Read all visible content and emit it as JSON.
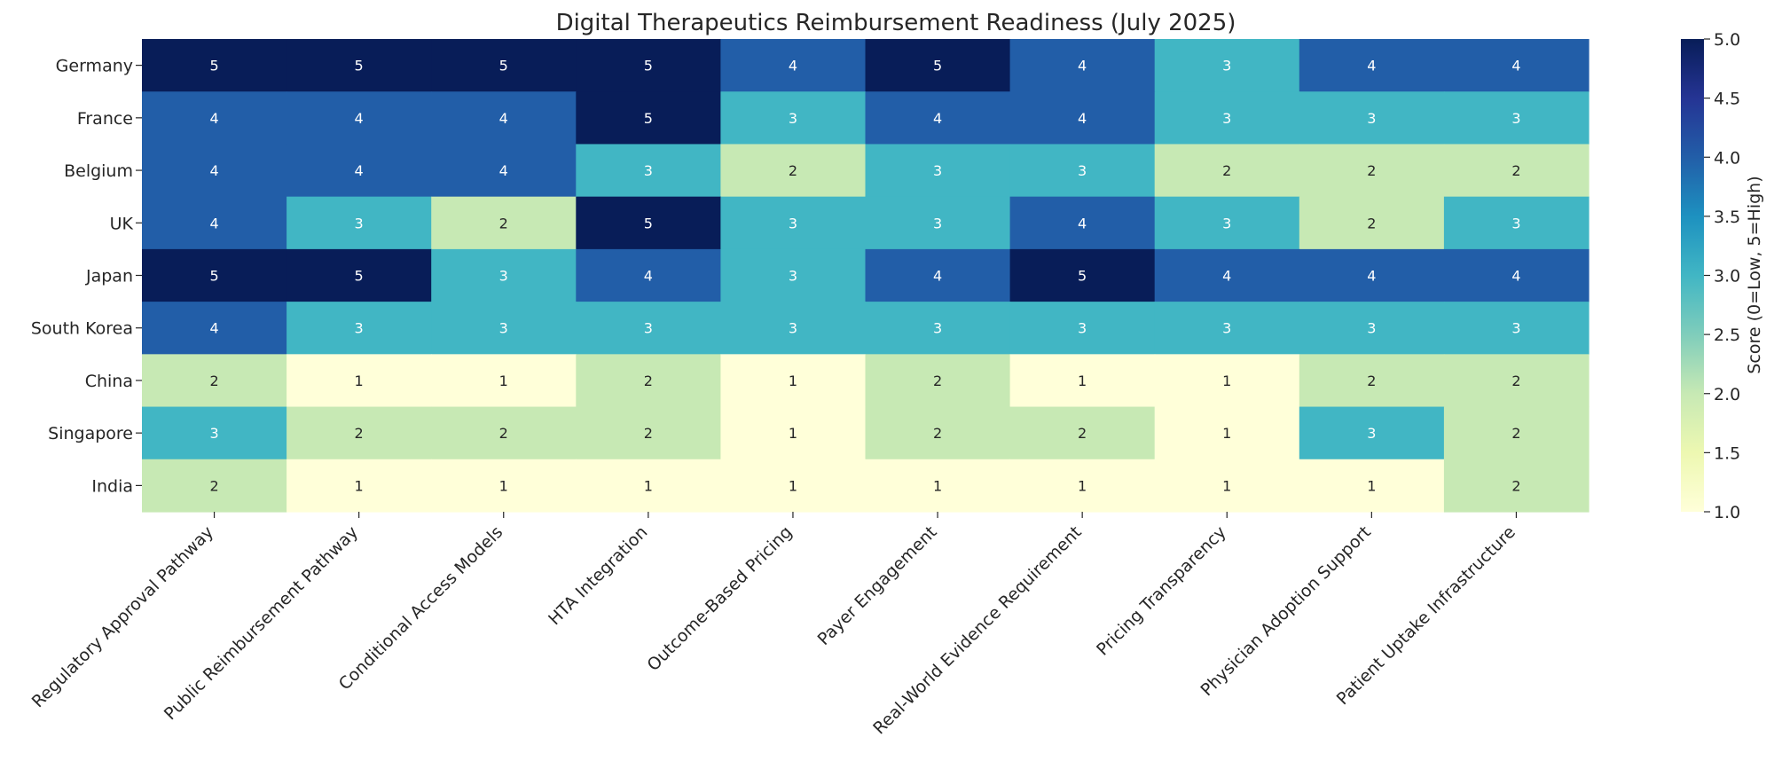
{
  "chart_data": {
    "type": "heatmap",
    "title": "Digital Therapeutics Reimbursement Readiness (July 2025)",
    "rows": [
      "Germany",
      "France",
      "Belgium",
      "UK",
      "Japan",
      "South Korea",
      "China",
      "Singapore",
      "India"
    ],
    "columns": [
      "Regulatory Approval Pathway",
      "Public Reimbursement Pathway",
      "Conditional Access Models",
      "HTA Integration",
      "Outcome-Based Pricing",
      "Payer Engagement",
      "Real-World Evidence Requirement",
      "Pricing Transparency",
      "Physician Adoption Support",
      "Patient Uptake Infrastructure"
    ],
    "values": [
      [
        5,
        5,
        5,
        5,
        4,
        5,
        4,
        3,
        4,
        4
      ],
      [
        4,
        4,
        4,
        5,
        3,
        4,
        4,
        3,
        3,
        3
      ],
      [
        4,
        4,
        4,
        3,
        2,
        3,
        3,
        2,
        2,
        2
      ],
      [
        4,
        3,
        2,
        5,
        3,
        3,
        4,
        3,
        2,
        3
      ],
      [
        5,
        5,
        3,
        4,
        3,
        4,
        5,
        4,
        4,
        4
      ],
      [
        4,
        3,
        3,
        3,
        3,
        3,
        3,
        3,
        3,
        3
      ],
      [
        2,
        1,
        1,
        2,
        1,
        2,
        1,
        1,
        2,
        2
      ],
      [
        3,
        2,
        2,
        2,
        1,
        2,
        2,
        1,
        3,
        2
      ],
      [
        2,
        1,
        1,
        1,
        1,
        1,
        1,
        1,
        1,
        2
      ]
    ],
    "colorbar": {
      "label": "Score (0=Low, 5=High)",
      "range": [
        1.0,
        5.0
      ],
      "ticks": [
        "1.0",
        "1.5",
        "2.0",
        "2.5",
        "3.0",
        "3.5",
        "4.0",
        "4.5",
        "5.0"
      ],
      "colormap": "YlGnBu"
    },
    "value_colors": {
      "1": "#ffffd9",
      "2": "#c7e9b4",
      "3": "#41b6c4",
      "4": "#225ea8",
      "5": "#081d58"
    },
    "annotations": true,
    "grid": false,
    "legend": "colorbar-right"
  }
}
